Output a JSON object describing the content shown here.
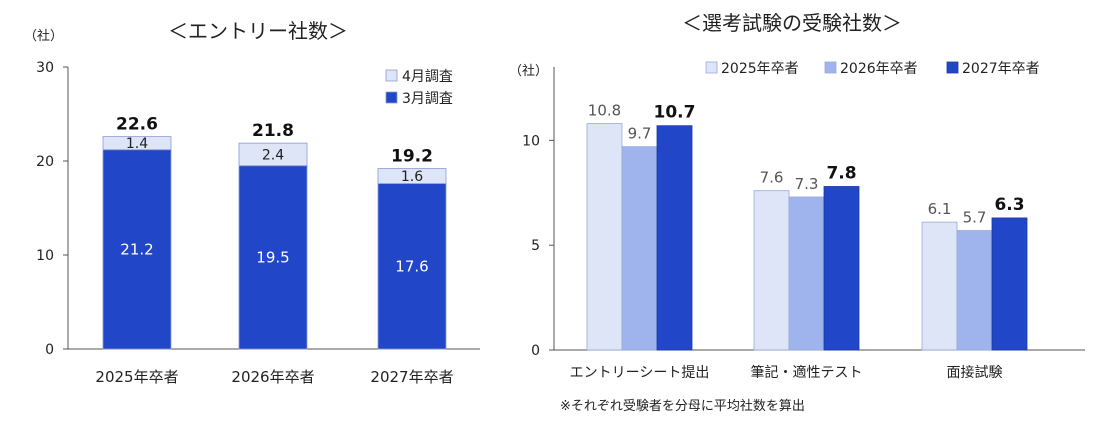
{
  "chart_data": [
    {
      "type": "bar",
      "stacked": true,
      "title": "＜エントリー社数＞",
      "ylabel": "（社）",
      "ylim": [
        0,
        30
      ],
      "yticks": [
        "0",
        "10",
        "20",
        "30"
      ],
      "categories": [
        "2025年卒者",
        "2026年卒者",
        "2027年卒者"
      ],
      "series": [
        {
          "name": "3月調査",
          "values": [
            21.2,
            19.5,
            17.6
          ],
          "labels": [
            "21.2",
            "19.5",
            "17.6"
          ],
          "color": "#2146c7"
        },
        {
          "name": "4月調査",
          "values": [
            1.4,
            2.4,
            1.6
          ],
          "labels": [
            "1.4",
            "2.4",
            "1.6"
          ],
          "color": "#dde5f6"
        }
      ],
      "legend": [
        "4月調査",
        "3月調査"
      ],
      "totals": [
        "22.6",
        "21.8",
        "19.2"
      ]
    },
    {
      "type": "bar",
      "title": "＜選考試験の受験社数＞",
      "ylabel": "（社）",
      "ylim": [
        0,
        13.5
      ],
      "yticks": [
        "0",
        "5",
        "10"
      ],
      "categories": [
        "エントリーシート提出",
        "筆記・適性テスト",
        "面接試験"
      ],
      "series": [
        {
          "name": "2025年卒者",
          "values": [
            10.8,
            7.6,
            6.1
          ],
          "labels": [
            "10.8",
            "7.6",
            "6.1"
          ],
          "color": "#dde5f6"
        },
        {
          "name": "2026年卒者",
          "values": [
            9.7,
            7.3,
            5.7
          ],
          "labels": [
            "9.7",
            "7.3",
            "5.7"
          ],
          "color": "#9fb4ec"
        },
        {
          "name": "2027年卒者",
          "values": [
            10.7,
            7.8,
            6.3
          ],
          "labels": [
            "10.7",
            "7.8",
            "6.3"
          ],
          "color": "#2146c7"
        }
      ],
      "note": "※それぞれ受験者を分母に平均社数を算出"
    }
  ]
}
